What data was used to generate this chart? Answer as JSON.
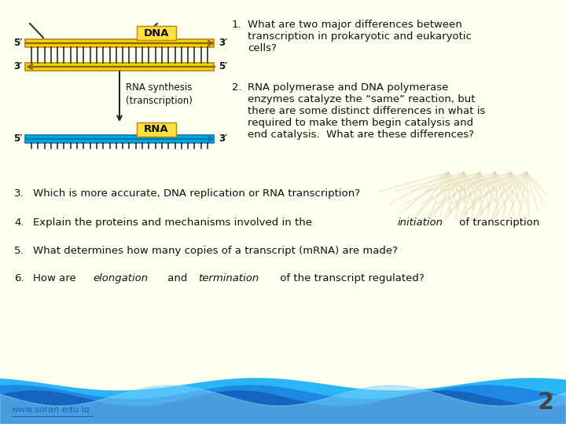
{
  "background_color": "#FDFDF0",
  "items_top_right": [
    {
      "number": "1.",
      "text": "What are two major differences between\ntranscription in prokaryotic and eukaryotic\ncells?"
    },
    {
      "number": "2.",
      "text": "RNA polymerase and DNA polymerase\nenzymes catalyze the “same” reaction, but\nthere are some distinct differences in what is\nrequired to make them begin catalysis and\nend catalysis.  What are these differences?"
    }
  ],
  "items_bottom": [
    {
      "number": "3.",
      "text": "Which is more accurate, DNA replication or RNA transcription?"
    },
    {
      "number": "4.",
      "text_parts": [
        {
          "text": "Explain the proteins and mechanisms involved in the ",
          "style": "normal"
        },
        {
          "text": "initiation",
          "style": "italic"
        },
        {
          "text": " of transcription",
          "style": "normal"
        }
      ]
    },
    {
      "number": "5.",
      "text": "What determines how many copies of a transcript (mRNA) are made?"
    },
    {
      "number": "6.",
      "text_parts": [
        {
          "text": "How are ",
          "style": "normal"
        },
        {
          "text": "elongation",
          "style": "italic"
        },
        {
          "text": " and ",
          "style": "normal"
        },
        {
          "text": "termination",
          "style": "italic"
        },
        {
          "text": " of the transcript regulated?",
          "style": "normal"
        }
      ]
    }
  ],
  "footer_url": "www.soran.edu.iq",
  "page_number": "2",
  "dna_label": "DNA",
  "rna_label": "RNA",
  "rna_synthesis_label": "RNA synthesis\n(transcription)",
  "five_prime": "5′",
  "three_prime": "3′",
  "gold_color": "#FFD700",
  "blue_color": "#00AADD",
  "text_dark": "#111111",
  "label_bg": "#FFE040"
}
